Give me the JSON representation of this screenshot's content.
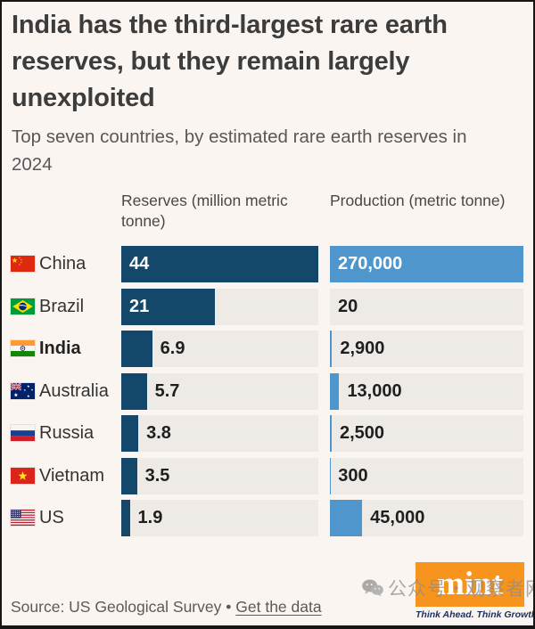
{
  "header": {
    "title": "India has the third-largest rare earth reserves, but they remain largely unexploited",
    "subtitle": "Top seven countries, by estimated rare earth reserves in 2024"
  },
  "chart_data": {
    "type": "bar",
    "title": "India has the third-largest rare earth reserves, but they remain largely unexploited",
    "subtitle": "Top seven countries, by estimated rare earth reserves in 2024",
    "orientation": "horizontal",
    "columns": [
      {
        "key": "reserves",
        "label": "Reserves (million metric tonne)",
        "unit": "million metric tonne",
        "axis_max": 44
      },
      {
        "key": "production",
        "label": "Production (metric tonne)",
        "unit": "metric tonne",
        "axis_max": 270000
      }
    ],
    "rows": [
      {
        "country": "China",
        "flag": "cn",
        "bold": false,
        "reserves": 44,
        "reserves_label": "44",
        "production": 270000,
        "production_label": "270,000"
      },
      {
        "country": "Brazil",
        "flag": "br",
        "bold": false,
        "reserves": 21,
        "reserves_label": "21",
        "production": 20,
        "production_label": "20"
      },
      {
        "country": "India",
        "flag": "in",
        "bold": true,
        "reserves": 6.9,
        "reserves_label": "6.9",
        "production": 2900,
        "production_label": "2,900"
      },
      {
        "country": "Australia",
        "flag": "au",
        "bold": false,
        "reserves": 5.7,
        "reserves_label": "5.7",
        "production": 13000,
        "production_label": "13,000"
      },
      {
        "country": "Russia",
        "flag": "ru",
        "bold": false,
        "reserves": 3.8,
        "reserves_label": "3.8",
        "production": 2500,
        "production_label": "2,500"
      },
      {
        "country": "Vietnam",
        "flag": "vn",
        "bold": false,
        "reserves": 3.5,
        "reserves_label": "3.5",
        "production": 300,
        "production_label": "300"
      },
      {
        "country": "US",
        "flag": "us",
        "bold": false,
        "reserves": 1.9,
        "reserves_label": "1.9",
        "production": 45000,
        "production_label": "45,000"
      }
    ],
    "legend": "none",
    "grid": false
  },
  "footer": {
    "source_prefix": "Source: US Geological Survey",
    "separator": "•",
    "link": "Get the data"
  },
  "branding": {
    "logo_text": "mint",
    "tagline": "Think Ahead. Think Growth."
  },
  "watermark": {
    "text": "公众号・观察者网"
  },
  "colors": {
    "background": "#fbf5f1",
    "reserves_bar": "#13486b",
    "production_bar": "#4e96cc",
    "bar_track": "#eeeae6",
    "title_text": "#3c3c3c",
    "logo_bg": "#f7941d"
  }
}
